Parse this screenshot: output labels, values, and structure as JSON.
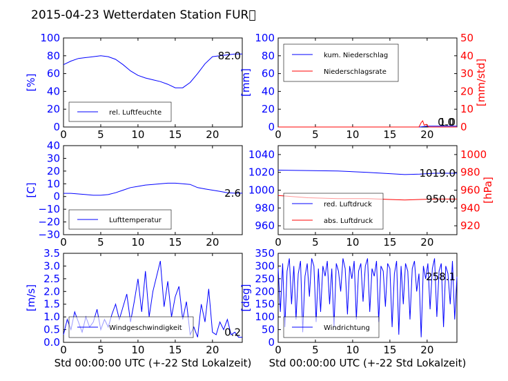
{
  "title": "2015-04-23 Wetterdaten Station FUR\u0000",
  "xlabel": "Std 00:00:00 UTC (+-22 Std Lokalzeit)",
  "x_ticks": [
    "0",
    "5",
    "10",
    "15",
    "20"
  ],
  "chart_data": [
    {
      "type": "line",
      "ylabel": "[%]",
      "ylim": [
        0,
        100
      ],
      "xlim": [
        0,
        24
      ],
      "yticks": [
        "0",
        "20",
        "40",
        "60",
        "80",
        "100"
      ],
      "series": [
        {
          "name": "rel. Luftfeuchte",
          "color": "#0000ff",
          "x": [
            0,
            1,
            2,
            3,
            4,
            5,
            6,
            7,
            8,
            9,
            10,
            11,
            12,
            13,
            14,
            15,
            16,
            17,
            18,
            19,
            20,
            21,
            22,
            23,
            24
          ],
          "y": [
            70,
            74,
            77,
            78,
            79,
            80,
            79,
            76,
            70,
            63,
            58,
            55,
            53,
            51,
            48,
            44,
            44,
            50,
            60,
            71,
            79,
            80,
            81,
            82,
            82
          ]
        }
      ],
      "annotation": "82.0"
    },
    {
      "type": "line",
      "ylabel": "[mm]",
      "ylabel_right": "[mm/std]",
      "ylim": [
        0,
        100
      ],
      "ylim_right": [
        0,
        50
      ],
      "xlim": [
        0,
        24
      ],
      "yticks": [
        "0",
        "20",
        "40",
        "60",
        "80",
        "100"
      ],
      "yticks_right": [
        "0",
        "10",
        "20",
        "30",
        "40",
        "50"
      ],
      "series": [
        {
          "name": "kum. Niederschlag",
          "color": "#0000ff",
          "axis": "left",
          "x": [
            0,
            19,
            19.5,
            20,
            24
          ],
          "y": [
            0,
            0,
            0.5,
            1.0,
            1.0
          ]
        },
        {
          "name": "Niederschlagsrate",
          "color": "#ff0000",
          "axis": "right",
          "x": [
            0,
            18.9,
            19.2,
            19.4,
            19.6,
            19.9,
            20.2,
            24
          ],
          "y": [
            0,
            0,
            2.5,
            3.5,
            1.0,
            1.5,
            0,
            0
          ]
        }
      ],
      "annotation_left": "1.0",
      "annotation_right": "0.0"
    },
    {
      "type": "line",
      "ylabel": "[C]",
      "ylim": [
        -30,
        40
      ],
      "xlim": [
        0,
        24
      ],
      "yticks": [
        "−30",
        "−20",
        "−10",
        "0",
        "10",
        "20",
        "30",
        "40"
      ],
      "series": [
        {
          "name": "Lufttemperatur",
          "color": "#0000ff",
          "x": [
            0,
            1,
            2,
            3,
            4,
            5,
            6,
            7,
            8,
            9,
            10,
            11,
            12,
            13,
            14,
            15,
            16,
            17,
            18,
            19,
            20,
            21,
            22,
            23,
            24
          ],
          "y": [
            2.5,
            2.5,
            2,
            1.5,
            1,
            1,
            1.5,
            3,
            5,
            7,
            8,
            9,
            9.5,
            10,
            10.5,
            10.5,
            10,
            9.5,
            7,
            6,
            5,
            4,
            3,
            2.6,
            2.6
          ]
        }
      ],
      "annotation": "2.6"
    },
    {
      "type": "line",
      "ylabel": "[hPa]",
      "ylim": [
        950,
        1050
      ],
      "ylim_right": [
        910,
        1010
      ],
      "xlim": [
        0,
        24
      ],
      "yticks": [
        "960",
        "980",
        "1000",
        "1020",
        "1040"
      ],
      "yticks_right": [
        "920",
        "940",
        "960",
        "980",
        "1000"
      ],
      "series": [
        {
          "name": "red. Luftdruck",
          "color": "#0000ff",
          "axis": "left",
          "x": [
            0,
            4,
            8,
            12,
            15,
            17,
            19,
            21,
            24
          ],
          "y": [
            1022.5,
            1022,
            1021.5,
            1020,
            1018.5,
            1017.5,
            1018,
            1019,
            1019
          ]
        },
        {
          "name": "abs. Luftdruck",
          "color": "#ff0000",
          "axis": "right",
          "x": [
            0,
            4,
            8,
            12,
            15,
            17,
            19,
            21,
            24
          ],
          "y": [
            954,
            951.5,
            950.5,
            950.5,
            949.5,
            949,
            949.5,
            950,
            950
          ]
        }
      ],
      "annotation_left": "1019.0",
      "annotation_right": "950.0"
    },
    {
      "type": "line",
      "ylabel": "[m/s]",
      "ylim": [
        0,
        3.5
      ],
      "xlim": [
        0,
        24
      ],
      "yticks": [
        "0.0",
        "0.5",
        "1.0",
        "1.5",
        "2.0",
        "2.5",
        "3.0",
        "3.5"
      ],
      "series": [
        {
          "name": "Windgeschwindigkeit",
          "color": "#0000ff",
          "x": [
            0,
            0.5,
            1,
            1.5,
            2,
            2.5,
            3,
            3.5,
            4,
            4.5,
            5,
            5.5,
            6,
            6.5,
            7,
            7.5,
            8,
            8.5,
            9,
            9.5,
            10,
            10.5,
            11,
            11.5,
            12,
            12.5,
            13,
            13.5,
            14,
            14.5,
            15,
            15.5,
            16,
            16.5,
            17,
            17.5,
            18,
            18.5,
            19,
            19.5,
            20,
            20.5,
            21,
            21.5,
            22,
            22.5,
            23,
            23.5,
            24
          ],
          "y": [
            0.3,
            0.9,
            0.5,
            1.2,
            0.8,
            0.4,
            1.0,
            0.6,
            0.8,
            1.3,
            0.5,
            0.9,
            0.6,
            1.1,
            1.5,
            0.9,
            1.4,
            1.9,
            0.8,
            1.6,
            2.5,
            1.2,
            2.8,
            1.0,
            2.0,
            2.6,
            3.2,
            1.4,
            2.4,
            1.0,
            1.8,
            2.2,
            0.9,
            1.6,
            0.3,
            0.6,
            0.2,
            1.5,
            0.8,
            2.1,
            0.4,
            0.3,
            0.8,
            0.5,
            0.9,
            0.3,
            0.4,
            0.2,
            0.2
          ]
        }
      ],
      "annotation": "0.2"
    },
    {
      "type": "line",
      "ylabel": "[deg]",
      "ylim": [
        0,
        350
      ],
      "xlim": [
        0,
        24
      ],
      "yticks": [
        "0",
        "50",
        "100",
        "150",
        "200",
        "250",
        "300",
        "350"
      ],
      "series": [
        {
          "name": "Windrichtung",
          "color": "#0000ff",
          "x": [
            0,
            0.3,
            0.6,
            0.9,
            1.2,
            1.5,
            1.8,
            2.1,
            2.4,
            2.7,
            3.0,
            3.3,
            3.6,
            3.9,
            4.2,
            4.5,
            4.8,
            5.1,
            5.4,
            5.7,
            6.0,
            6.3,
            6.6,
            6.9,
            7.2,
            7.5,
            7.8,
            8.1,
            8.4,
            8.7,
            9.0,
            9.3,
            9.6,
            9.9,
            10.2,
            10.5,
            10.8,
            11.1,
            11.4,
            11.7,
            12.0,
            12.3,
            12.6,
            12.9,
            13.2,
            13.5,
            13.8,
            14.1,
            14.4,
            14.7,
            15.0,
            15.3,
            15.6,
            15.9,
            16.2,
            16.5,
            16.8,
            17.1,
            17.4,
            17.7,
            18.0,
            18.3,
            18.6,
            18.9,
            19.2,
            19.5,
            19.8,
            20.1,
            20.4,
            20.7,
            21.0,
            21.3,
            21.6,
            21.9,
            22.2,
            22.5,
            22.8,
            23.1,
            23.4,
            23.7,
            24
          ],
          "y": [
            290,
            120,
            310,
            60,
            280,
            330,
            150,
            300,
            90,
            270,
            320,
            40,
            260,
            310,
            180,
            330,
            300,
            80,
            290,
            120,
            300,
            260,
            320,
            150,
            290,
            60,
            310,
            280,
            200,
            330,
            290,
            110,
            300,
            250,
            320,
            90,
            280,
            310,
            160,
            300,
            330,
            120,
            290,
            260,
            320,
            80,
            300,
            280,
            140,
            310,
            290,
            60,
            270,
            320,
            30,
            300,
            150,
            310,
            280,
            90,
            290,
            320,
            200,
            270,
            20,
            300,
            250,
            310,
            130,
            290,
            330,
            100,
            280,
            310,
            60,
            300,
            270,
            150,
            320,
            90,
            258
          ]
        }
      ],
      "annotation": "258.1"
    }
  ]
}
